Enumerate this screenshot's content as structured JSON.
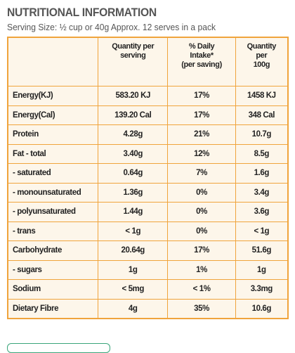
{
  "header": {
    "title": "NUTRITIONAL INFORMATION",
    "serving": "Serving Size: ½ cup or 40g   Approx. 12 serves in a pack"
  },
  "table": {
    "columns": [
      [
        "Quantity per",
        "serving"
      ],
      [
        "% Daily",
        "Intake*",
        "(per saving)"
      ],
      [
        "Quantity",
        "per",
        "100g"
      ]
    ],
    "rows": [
      [
        "Energy(KJ)",
        "583.20 KJ",
        "17%",
        "1458 KJ"
      ],
      [
        "Energy(Cal)",
        "139.20 Cal",
        "17%",
        "348 Cal"
      ],
      [
        "Protein",
        "4.28g",
        "21%",
        "10.7g"
      ],
      [
        "Fat - total",
        "3.40g",
        "12%",
        "8.5g"
      ],
      [
        "- saturated",
        "0.64g",
        "7%",
        "1.6g"
      ],
      [
        "- monounsaturated",
        "1.36g",
        "0%",
        "3.4g"
      ],
      [
        "- polyunsaturated",
        "1.44g",
        "0%",
        "3.6g"
      ],
      [
        "- trans",
        "< 1g",
        "0%",
        "< 1g"
      ],
      [
        "Carbohydrate",
        "20.64g",
        "17%",
        "51.6g"
      ],
      [
        "- sugars",
        "1g",
        "1%",
        "1g"
      ],
      [
        "Sodium",
        "< 5mg",
        "< 1%",
        "3.3mg"
      ],
      [
        "Dietary Fibre",
        "4g",
        "35%",
        "10.6g"
      ]
    ]
  }
}
